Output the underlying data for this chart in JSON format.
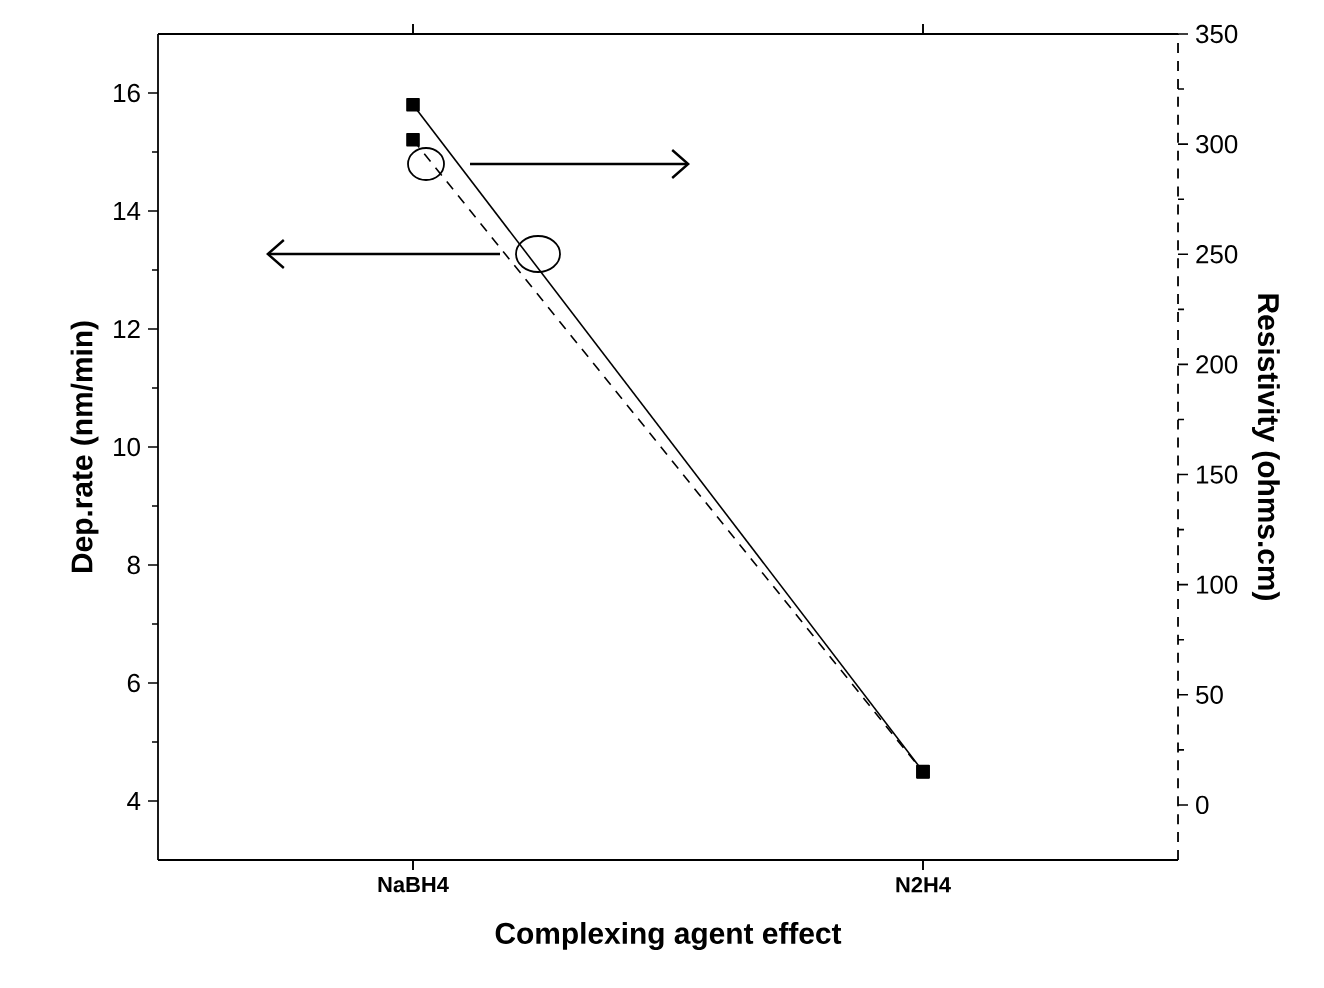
{
  "chart_data": {
    "type": "line",
    "xlabel": "Complexing agent effect",
    "ylabel": "Dep.rate (nm/min)",
    "y2label": "Resistivity (ohms.cm)",
    "categories": [
      "NaBH4",
      "N2H4"
    ],
    "series": [
      {
        "values": [
          15.8,
          4.5
        ],
        "color": "#000000",
        "line_style": "solid"
      },
      {
        "values": [
          302,
          15
        ],
        "color": "#000000",
        "line_style": "dashed",
        "axis": "y2"
      }
    ],
    "ylim": [
      3,
      17
    ],
    "yticks": [
      4,
      6,
      8,
      10,
      12,
      14,
      16
    ],
    "y2lim": [
      -25,
      350
    ],
    "y2ticks": [
      0,
      50,
      100,
      150,
      200,
      250,
      300,
      350
    ],
    "marker": "square",
    "grid": false
  }
}
